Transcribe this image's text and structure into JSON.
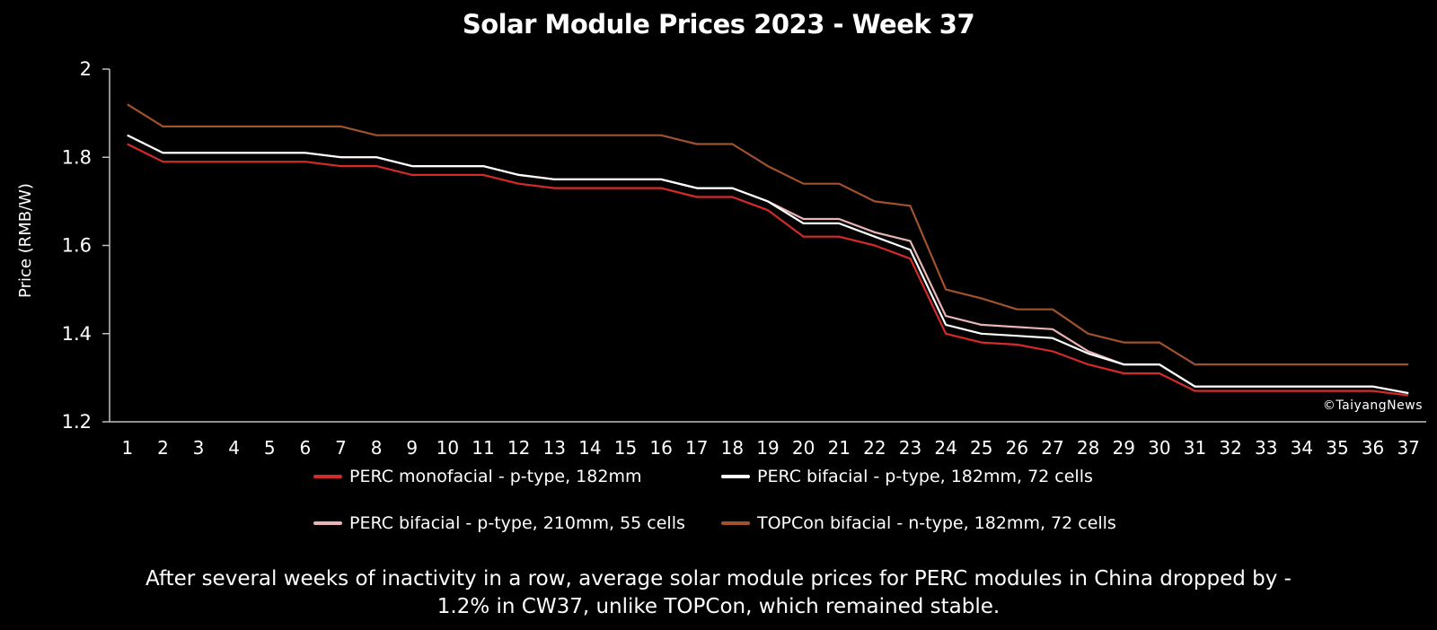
{
  "chart_data": {
    "type": "line",
    "title": "Solar Module Prices 2023 - Week 37",
    "xlabel": "",
    "ylabel": "Price (RMB/W)",
    "ylim": [
      1.2,
      2.0
    ],
    "yticks": [
      "1.2",
      "1.4",
      "1.6",
      "1.8",
      "2"
    ],
    "grid": false,
    "legend_position": "bottom",
    "x": [
      1,
      2,
      3,
      4,
      5,
      6,
      7,
      8,
      9,
      10,
      11,
      12,
      13,
      14,
      15,
      16,
      17,
      18,
      19,
      20,
      21,
      22,
      23,
      24,
      25,
      26,
      27,
      28,
      29,
      30,
      31,
      32,
      33,
      34,
      35,
      36,
      37
    ],
    "series": [
      {
        "name": "PERC monofacial - p-type, 182mm",
        "color": "#d42a2a",
        "values": [
          1.83,
          1.79,
          1.79,
          1.79,
          1.79,
          1.79,
          1.78,
          1.78,
          1.76,
          1.76,
          1.76,
          1.74,
          1.73,
          1.73,
          1.73,
          1.73,
          1.71,
          1.71,
          1.68,
          1.62,
          1.62,
          1.6,
          1.57,
          1.4,
          1.38,
          1.375,
          1.36,
          1.33,
          1.31,
          1.31,
          1.27,
          1.27,
          1.27,
          1.27,
          1.27,
          1.27,
          1.26
        ]
      },
      {
        "name": "PERC bifacial - p-type, 182mm, 72 cells",
        "color": "#ffffff",
        "values": [
          1.85,
          1.81,
          1.81,
          1.81,
          1.81,
          1.81,
          1.8,
          1.8,
          1.78,
          1.78,
          1.78,
          1.76,
          1.75,
          1.75,
          1.75,
          1.75,
          1.73,
          1.73,
          1.7,
          1.65,
          1.65,
          1.62,
          1.59,
          1.42,
          1.4,
          1.395,
          1.39,
          1.355,
          1.33,
          1.33,
          1.28,
          1.28,
          1.28,
          1.28,
          1.28,
          1.28,
          1.265
        ]
      },
      {
        "name": "PERC bifacial - p-type, 210mm, 55 cells",
        "color": "#e8b4b4",
        "values": [
          1.85,
          1.81,
          1.81,
          1.81,
          1.81,
          1.81,
          1.8,
          1.8,
          1.78,
          1.78,
          1.78,
          1.76,
          1.75,
          1.75,
          1.75,
          1.75,
          1.73,
          1.73,
          1.7,
          1.66,
          1.66,
          1.63,
          1.61,
          1.44,
          1.42,
          1.415,
          1.41,
          1.36,
          1.33,
          1.33,
          1.28,
          1.28,
          1.28,
          1.28,
          1.28,
          1.28,
          1.265
        ]
      },
      {
        "name": "TOPCon bifacial - n-type, 182mm, 72 cells",
        "color": "#a0522d",
        "values": [
          1.92,
          1.87,
          1.87,
          1.87,
          1.87,
          1.87,
          1.87,
          1.85,
          1.85,
          1.85,
          1.85,
          1.85,
          1.85,
          1.85,
          1.85,
          1.85,
          1.83,
          1.83,
          1.78,
          1.74,
          1.74,
          1.7,
          1.69,
          1.5,
          1.48,
          1.455,
          1.455,
          1.4,
          1.38,
          1.38,
          1.33,
          1.33,
          1.33,
          1.33,
          1.33,
          1.33,
          1.33
        ]
      }
    ],
    "annotation": "©TaiyangNews"
  },
  "caption": {
    "line1": "After several weeks of inactivity in a row, average solar module prices for PERC modules in China dropped by -",
    "line2": "1.2% in CW37, unlike TOPCon, which remained stable."
  }
}
